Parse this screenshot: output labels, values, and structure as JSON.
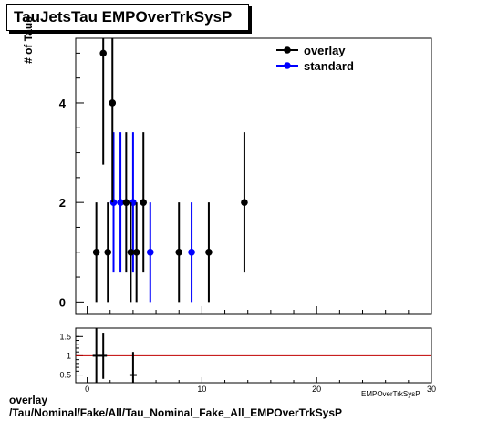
{
  "title": "TauJetsTau EMPOverTrkSysP",
  "footer_line1": "overlay",
  "footer_line2": "/Tau/Nominal/Fake/All/Tau_Nominal_Fake_All_EMPOverTrkSysP",
  "colors": {
    "overlay": "#000000",
    "standard": "#0000ff",
    "ratio_line": "#c00000"
  },
  "chart_data": [
    {
      "type": "scatter",
      "xlabel": "EMPOverTrkSysP",
      "ylabel": "# of Taus",
      "xlim": [
        -1,
        30
      ],
      "ylim": [
        -0.25,
        5.3
      ],
      "yticks": [
        0,
        2,
        4
      ],
      "legend_placement": "top-right",
      "series": [
        {
          "name": "overlay",
          "points": [
            {
              "x": 0.8,
              "y": 1,
              "yerr": 1
            },
            {
              "x": 1.4,
              "y": 5,
              "yerr": 2.24
            },
            {
              "x": 1.8,
              "y": 1,
              "yerr": 1
            },
            {
              "x": 2.2,
              "y": 4,
              "yerr": 2
            },
            {
              "x": 3.4,
              "y": 2,
              "yerr": 1.41
            },
            {
              "x": 3.8,
              "y": 1,
              "yerr": 1
            },
            {
              "x": 4.3,
              "y": 1,
              "yerr": 1
            },
            {
              "x": 4.9,
              "y": 2,
              "yerr": 1.41
            },
            {
              "x": 8.0,
              "y": 1,
              "yerr": 1
            },
            {
              "x": 10.6,
              "y": 1,
              "yerr": 1
            },
            {
              "x": 13.7,
              "y": 2,
              "yerr": 1.41
            }
          ]
        },
        {
          "name": "standard",
          "points": [
            {
              "x": 2.3,
              "y": 2,
              "yerr": 1.41
            },
            {
              "x": 2.9,
              "y": 2,
              "yerr": 1.41
            },
            {
              "x": 4.0,
              "y": 2,
              "yerr": 1.41
            },
            {
              "x": 5.5,
              "y": 1,
              "yerr": 1
            },
            {
              "x": 9.1,
              "y": 1,
              "yerr": 1
            }
          ]
        }
      ]
    },
    {
      "type": "scatter",
      "xlim": [
        -1,
        30
      ],
      "ylim": [
        0.3,
        1.72
      ],
      "xticks": [
        0,
        10,
        20,
        30
      ],
      "yticks": [
        0.5,
        1,
        1.5
      ],
      "reference_line": 1,
      "points": [
        {
          "x": 0.8,
          "y": 1,
          "yerr": 1.41
        },
        {
          "x": 1.4,
          "y": 1,
          "yerr": 0.6
        },
        {
          "x": 4.0,
          "y": 0.5,
          "yerr": 0.6
        }
      ]
    }
  ]
}
